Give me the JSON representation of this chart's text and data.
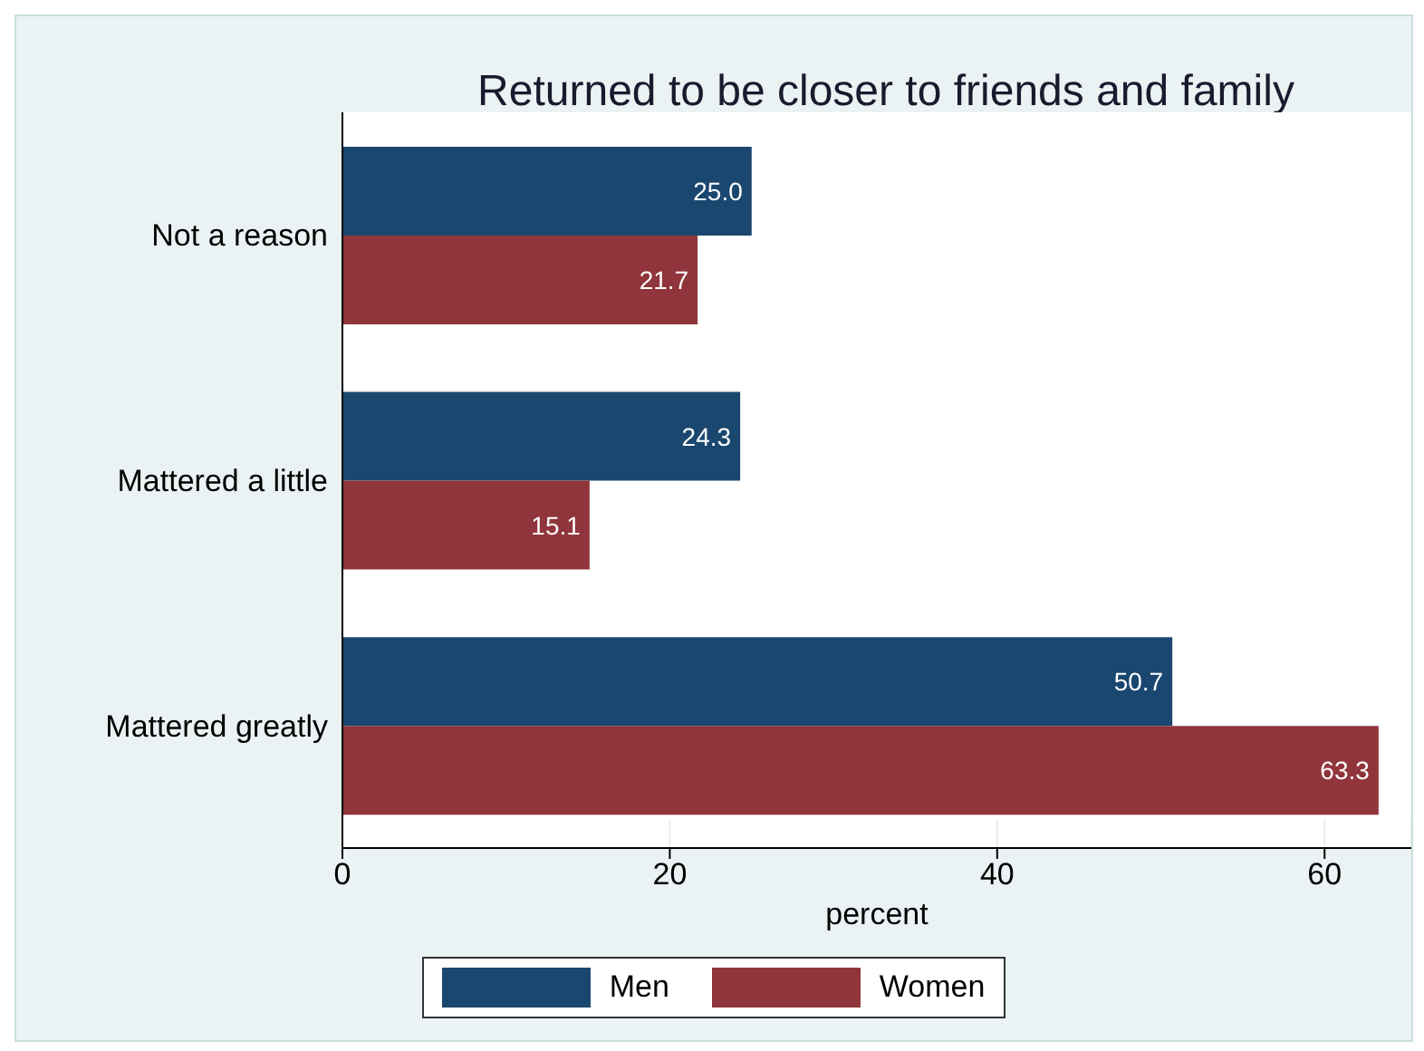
{
  "chart_data": {
    "type": "bar",
    "orientation": "horizontal",
    "title": "Returned to be closer to friends and family",
    "xlabel": "percent",
    "categories": [
      "Not a reason",
      "Mattered a little",
      "Mattered greatly"
    ],
    "series": [
      {
        "name": "Men",
        "color": "#1a476f",
        "values": [
          25.0,
          24.3,
          50.7
        ],
        "value_labels": [
          "25.0",
          "24.3",
          "50.7"
        ]
      },
      {
        "name": "Women",
        "color": "#90353b",
        "values": [
          21.7,
          15.1,
          63.3
        ],
        "value_labels": [
          "21.7",
          "15.1",
          "63.3"
        ]
      }
    ],
    "xlim": [
      0,
      65.3
    ],
    "xticks": [
      0,
      20,
      40,
      60
    ],
    "grid": "x",
    "legend": "bottom"
  }
}
